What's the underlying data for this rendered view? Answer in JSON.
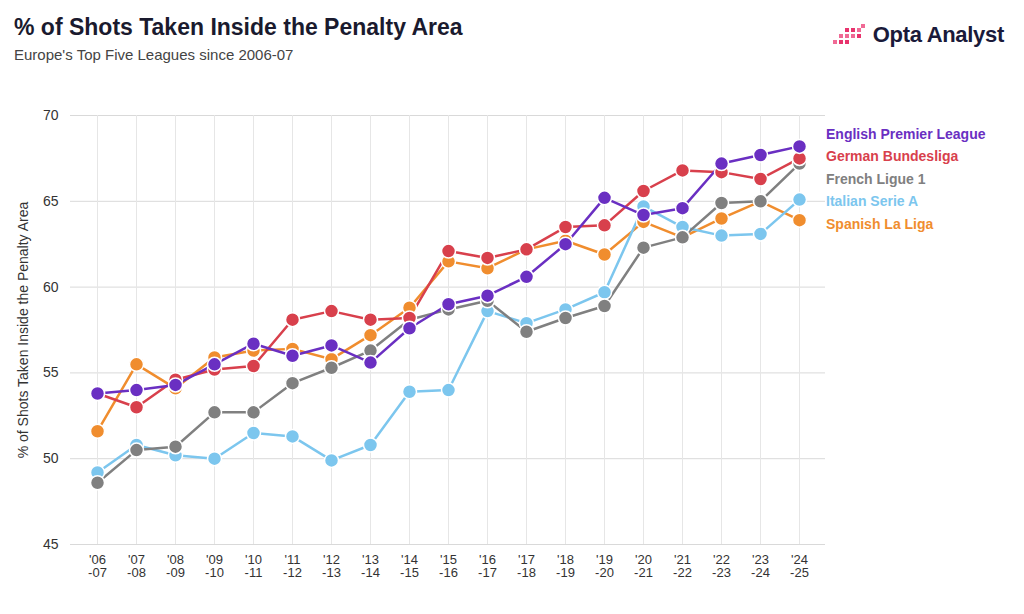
{
  "chart_data": {
    "type": "line",
    "title": "% of Shots Taken Inside the Penalty Area",
    "subtitle": "Europe's Top Five Leagues since 2006-07",
    "logo_text": "Opta Analyst",
    "y_label": "% of Shots Taken Inside the Penalty Area",
    "categories": [
      "'06-07",
      "'07-08",
      "'08-09",
      "'09-10",
      "'10-11",
      "'11-12",
      "'12-13",
      "'13-14",
      "'14-15",
      "'15-16",
      "'16-17",
      "'17-18",
      "'18-19",
      "'19-20",
      "'20-21",
      "'21-22",
      "'22-23",
      "'23-24",
      "'24-25"
    ],
    "ylim": [
      45,
      70
    ],
    "yticks": [
      45,
      50,
      55,
      60,
      65,
      70
    ],
    "grid": true,
    "legend": "right",
    "marker": "circle",
    "line_style": "solid",
    "series": [
      {
        "name": "English Premier League",
        "color": "#6a2fc2",
        "values": [
          53.8,
          54.0,
          54.3,
          55.5,
          56.7,
          56.0,
          56.6,
          55.6,
          57.6,
          59.0,
          59.5,
          60.6,
          62.5,
          65.2,
          64.2,
          64.6,
          67.2,
          67.7,
          68.2
        ]
      },
      {
        "name": "German Bundesliga",
        "color": "#d8404c",
        "values": [
          53.8,
          53.0,
          54.6,
          55.2,
          55.4,
          58.1,
          58.6,
          58.1,
          58.2,
          62.1,
          61.7,
          62.2,
          63.5,
          63.6,
          65.6,
          66.8,
          66.7,
          66.3,
          67.5
        ]
      },
      {
        "name": "French Ligue 1",
        "color": "#808080",
        "values": [
          48.6,
          50.5,
          50.7,
          52.7,
          52.7,
          54.4,
          55.3,
          56.3,
          58.1,
          58.7,
          59.2,
          57.4,
          58.2,
          58.9,
          62.3,
          62.9,
          64.9,
          65.0,
          67.2
        ]
      },
      {
        "name": "Italian Serie A",
        "color": "#7cc6ee",
        "values": [
          49.2,
          50.8,
          50.2,
          50.0,
          51.5,
          51.3,
          49.9,
          50.8,
          53.9,
          54.0,
          58.6,
          57.9,
          58.7,
          59.7,
          64.7,
          63.5,
          63.0,
          63.1,
          65.1
        ]
      },
      {
        "name": "Spanish La Liga",
        "color": "#f08d2e",
        "values": [
          51.6,
          55.5,
          54.1,
          55.9,
          56.3,
          56.4,
          55.8,
          57.2,
          58.8,
          61.5,
          61.1,
          62.2,
          62.7,
          61.9,
          63.8,
          62.9,
          64.0,
          65.0,
          63.9
        ]
      }
    ]
  }
}
